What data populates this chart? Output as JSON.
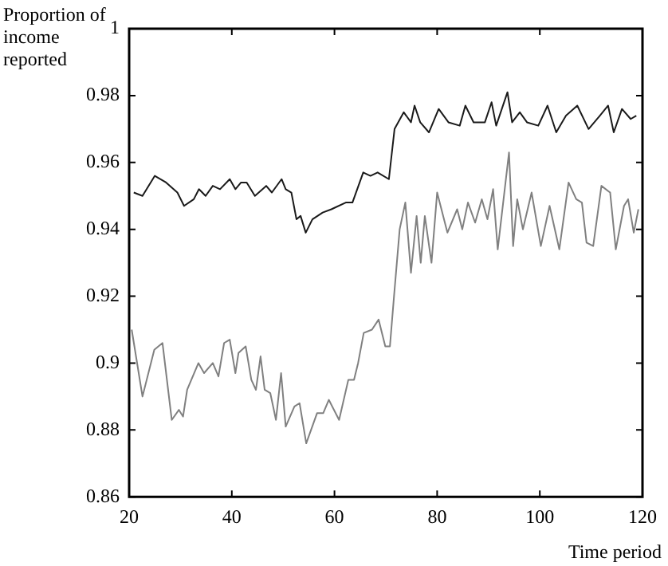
{
  "chart_data": {
    "type": "line",
    "ylabel": "Proportion of\nincome\nreported",
    "xlabel": "Time period",
    "xlim": [
      20,
      120
    ],
    "xticks": [
      20,
      40,
      60,
      80,
      100,
      120
    ],
    "ylim": [
      0.86,
      1
    ],
    "yticks": [
      0.86,
      0.88,
      0.9,
      0.92,
      0.94,
      0.96,
      0.98,
      1
    ],
    "grid": false,
    "legend": false,
    "marker": "none",
    "line_style": "solid",
    "series": [
      {
        "color": "#1a1a1a",
        "x": [
          20.9,
          22.6,
          25,
          27.2,
          29.4,
          30.7,
          32.6,
          33.6,
          34.9,
          36.3,
          37.7,
          39.6,
          40.7,
          41.8,
          42.9,
          44.5,
          46.7,
          47.8,
          49.7,
          50.5,
          51.6,
          52.6,
          53.4,
          54.4,
          55.7,
          57.7,
          59.4,
          62.2,
          63.5,
          65.6,
          67,
          68.4,
          70.6,
          71.7,
          73.5,
          74.9,
          75.6,
          76.7,
          78.4,
          80.3,
          82.2,
          84.4,
          85.5,
          87.1,
          89.3,
          90.6,
          91.5,
          93.7,
          94.6,
          96.1,
          97.5,
          99.7,
          101.5,
          103.2,
          105.1,
          107.3,
          109.5,
          111.7,
          113.3,
          114.4,
          116,
          117.7,
          118.8
        ],
        "values": [
          0.951,
          0.95,
          0.956,
          0.954,
          0.951,
          0.947,
          0.949,
          0.952,
          0.95,
          0.953,
          0.952,
          0.955,
          0.952,
          0.954,
          0.954,
          0.95,
          0.953,
          0.951,
          0.955,
          0.952,
          0.951,
          0.943,
          0.944,
          0.939,
          0.943,
          0.945,
          0.946,
          0.948,
          0.948,
          0.957,
          0.956,
          0.957,
          0.955,
          0.97,
          0.975,
          0.972,
          0.977,
          0.972,
          0.969,
          0.976,
          0.972,
          0.971,
          0.977,
          0.972,
          0.972,
          0.978,
          0.971,
          0.981,
          0.972,
          0.975,
          0.972,
          0.971,
          0.977,
          0.969,
          0.974,
          0.977,
          0.97,
          0.974,
          0.977,
          0.969,
          0.976,
          0.973,
          0.974
        ]
      },
      {
        "color": "#808080",
        "x": [
          20.5,
          22.6,
          24.9,
          26.5,
          28.3,
          29.7,
          30.5,
          31.3,
          33.5,
          34.6,
          36.3,
          37.4,
          38.5,
          39.6,
          40.7,
          41.3,
          42.7,
          43.8,
          44.7,
          45.6,
          46.4,
          47.5,
          48.6,
          49.6,
          50.5,
          52.2,
          53.2,
          54.5,
          56.6,
          57.8,
          58.9,
          60.9,
          62.7,
          63.8,
          64.6,
          65.7,
          67.3,
          68.6,
          69.9,
          70.8,
          71.6,
          72.7,
          73.8,
          74.9,
          76,
          76.8,
          77.6,
          78.9,
          80,
          82,
          83.9,
          84.9,
          86,
          87.4,
          88.7,
          89.8,
          90.9,
          91.8,
          94,
          94.8,
          95.6,
          96.7,
          98.4,
          100.2,
          101.9,
          103.8,
          105.6,
          107.1,
          108.2,
          109.1,
          110.4,
          112,
          113.7,
          114.8,
          116.4,
          117.2,
          118.3,
          119.2
        ],
        "values": [
          0.91,
          0.89,
          0.904,
          0.906,
          0.883,
          0.886,
          0.884,
          0.892,
          0.9,
          0.897,
          0.9,
          0.896,
          0.906,
          0.907,
          0.897,
          0.903,
          0.905,
          0.895,
          0.892,
          0.902,
          0.892,
          0.891,
          0.883,
          0.897,
          0.881,
          0.887,
          0.888,
          0.876,
          0.885,
          0.885,
          0.889,
          0.883,
          0.895,
          0.895,
          0.9,
          0.909,
          0.91,
          0.913,
          0.905,
          0.905,
          0.92,
          0.94,
          0.948,
          0.927,
          0.944,
          0.93,
          0.944,
          0.93,
          0.951,
          0.939,
          0.946,
          0.94,
          0.948,
          0.942,
          0.949,
          0.943,
          0.952,
          0.934,
          0.963,
          0.935,
          0.949,
          0.94,
          0.951,
          0.935,
          0.947,
          0.934,
          0.954,
          0.949,
          0.948,
          0.936,
          0.935,
          0.953,
          0.951,
          0.934,
          0.947,
          0.949,
          0.939,
          0.946
        ]
      }
    ]
  }
}
